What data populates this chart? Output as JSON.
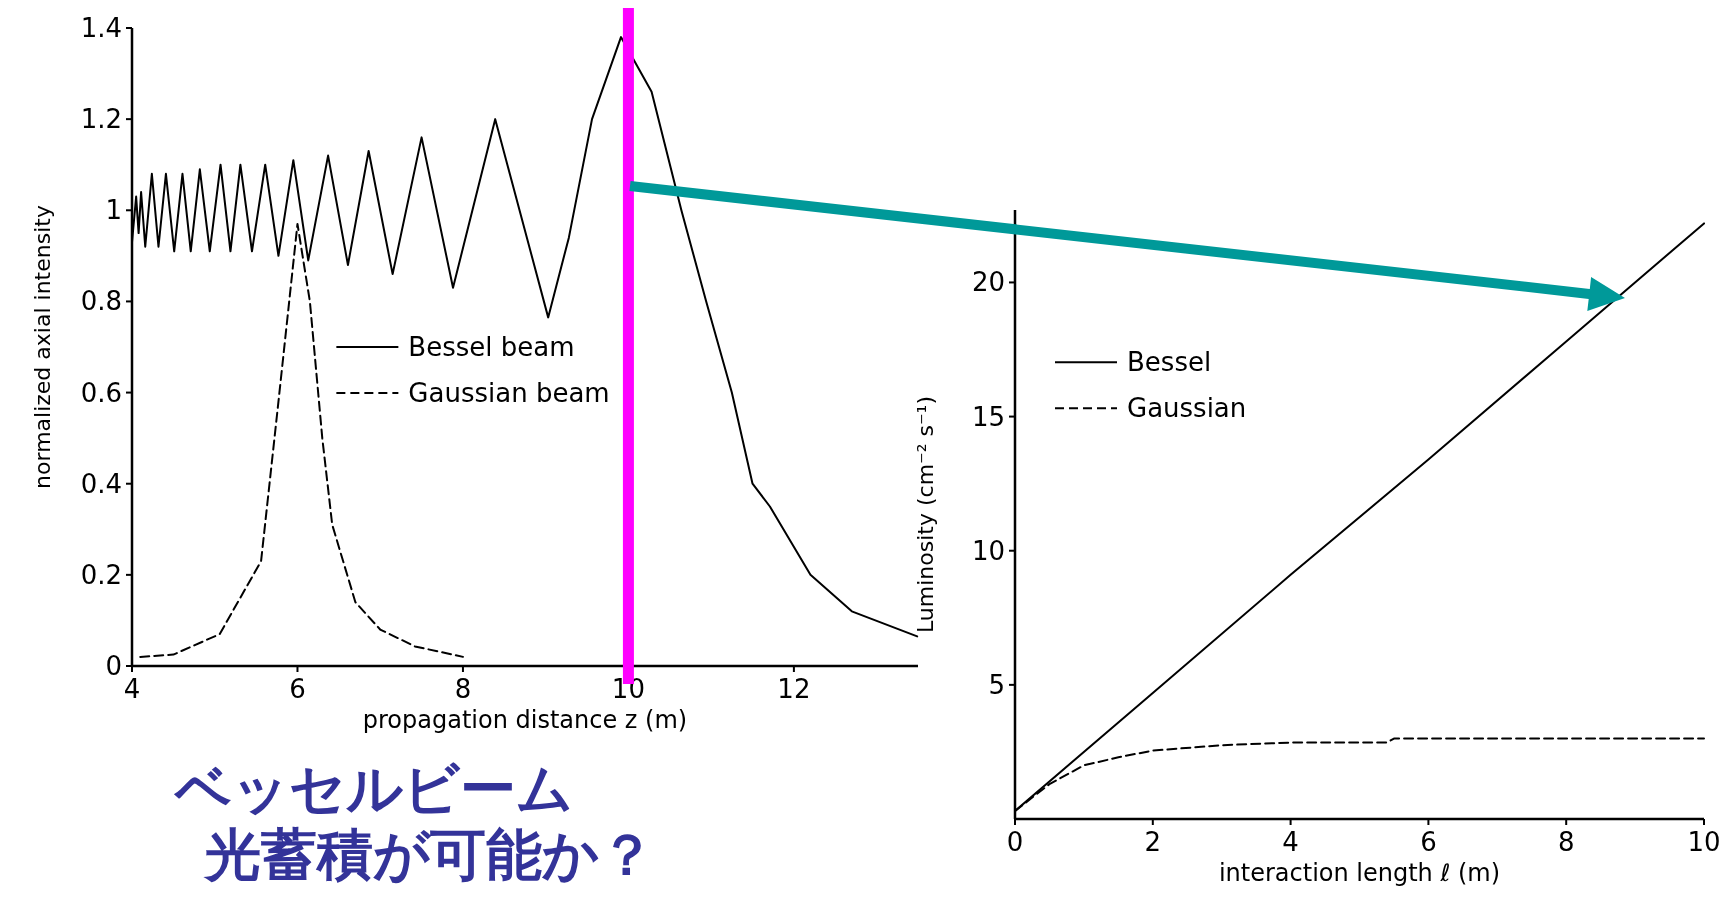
{
  "chart_data": [
    {
      "type": "line",
      "xlabel": "propagation distance z (m)",
      "ylabel": "normalized axial intensity",
      "xlim": [
        4,
        13.5
      ],
      "ylim": [
        0,
        1.4
      ],
      "xticks": [
        4,
        6,
        8,
        10,
        12
      ],
      "yticks": [
        0,
        0.2,
        0.4,
        0.6,
        0.8,
        1,
        1.2,
        1.4
      ],
      "legend": "center",
      "series": [
        {
          "name": "Bessel beam",
          "color": "#000000",
          "line_style": "solid",
          "x": [
            4.0,
            4.05,
            4.08,
            4.11,
            4.16,
            4.24,
            4.32,
            4.41,
            4.51,
            4.61,
            4.71,
            4.82,
            4.94,
            5.07,
            5.19,
            5.31,
            5.45,
            5.61,
            5.77,
            5.95,
            6.13,
            6.37,
            6.61,
            6.86,
            7.15,
            7.5,
            7.88,
            8.39,
            9.03,
            9.28,
            9.56,
            9.91,
            10.28,
            10.64,
            10.94,
            11.25,
            11.5,
            11.71,
            12.2,
            12.7,
            13.49
          ],
          "values": [
            0.93,
            1.03,
            0.95,
            1.04,
            0.92,
            1.08,
            0.92,
            1.08,
            0.91,
            1.08,
            0.91,
            1.09,
            0.91,
            1.1,
            0.91,
            1.1,
            0.91,
            1.1,
            0.9,
            1.11,
            0.89,
            1.12,
            0.88,
            1.13,
            0.86,
            1.16,
            0.83,
            1.2,
            0.765,
            0.94,
            1.2,
            1.38,
            1.26,
            1.0,
            0.8,
            0.6,
            0.4,
            0.35,
            0.2,
            0.12,
            0.065
          ]
        },
        {
          "name": "Gaussian beam",
          "color": "#000000",
          "line_style": "dashed",
          "x": [
            4.1,
            4.5,
            5.06,
            5.56,
            5.77,
            5.9,
            6.0,
            6.15,
            6.3,
            6.42,
            6.7,
            7.0,
            7.42,
            8.0
          ],
          "values": [
            0.02,
            0.025,
            0.07,
            0.23,
            0.58,
            0.8,
            0.97,
            0.8,
            0.5,
            0.31,
            0.14,
            0.08,
            0.043,
            0.02
          ]
        }
      ],
      "ref_lines": [
        {
          "axis": "x",
          "value": 10,
          "color": "#ff00ff"
        }
      ],
      "annotations": [
        "ベッセルビーム",
        "光蓄積が可能か？"
      ]
    },
    {
      "type": "line",
      "xlabel": "interaction length ℓ (m)",
      "ylabel": "Luminosity (cm⁻² s⁻¹)",
      "xlim": [
        0,
        10
      ],
      "ylim": [
        0,
        22.7
      ],
      "xticks": [
        0,
        2,
        4,
        6,
        8,
        10
      ],
      "yticks": [
        5,
        10,
        15,
        20
      ],
      "legend": "top left",
      "series": [
        {
          "name": "Bessel",
          "color": "#000000",
          "line_style": "solid",
          "x": [
            0,
            2,
            4,
            6,
            8,
            10
          ],
          "values": [
            0.3,
            4.7,
            9.1,
            13.4,
            17.8,
            22.2
          ]
        },
        {
          "name": "Gaussian",
          "color": "#000000",
          "line_style": "dashed",
          "x": [
            0,
            0.5,
            1,
            1.5,
            2,
            3,
            4,
            5.4,
            5.5,
            10
          ],
          "values": [
            0.3,
            1.3,
            2.0,
            2.3,
            2.55,
            2.75,
            2.85,
            2.85,
            3.0,
            3.0
          ]
        }
      ]
    }
  ]
}
